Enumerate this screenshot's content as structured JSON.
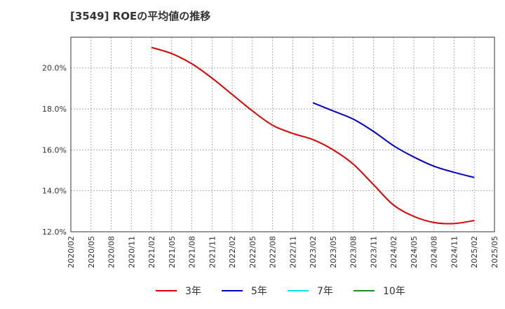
{
  "chart_data": {
    "type": "line",
    "title": "[3549]  ROEの平均値の推移",
    "xlabel": "",
    "ylabel": "",
    "x_ticks": [
      "2020/02",
      "2020/05",
      "2020/08",
      "2020/11",
      "2021/02",
      "2021/05",
      "2021/08",
      "2021/11",
      "2022/02",
      "2022/05",
      "2022/08",
      "2022/11",
      "2023/02",
      "2023/05",
      "2023/08",
      "2023/11",
      "2024/02",
      "2024/05",
      "2024/08",
      "2024/11",
      "2025/02",
      "2025/05"
    ],
    "y_ticks": [
      "12.0%",
      "14.0%",
      "16.0%",
      "18.0%",
      "20.0%"
    ],
    "ylim": [
      12.0,
      21.5
    ],
    "grid": true,
    "legend_position": "bottom",
    "series": [
      {
        "name": "3年",
        "color": "#dd0000",
        "points": [
          [
            "2021/02",
            21.0
          ],
          [
            "2021/05",
            20.7
          ],
          [
            "2021/08",
            20.2
          ],
          [
            "2021/11",
            19.5
          ],
          [
            "2022/02",
            18.7
          ],
          [
            "2022/05",
            17.9
          ],
          [
            "2022/08",
            17.2
          ],
          [
            "2022/11",
            16.8
          ],
          [
            "2023/02",
            16.5
          ],
          [
            "2023/05",
            16.0
          ],
          [
            "2023/08",
            15.3
          ],
          [
            "2023/11",
            14.3
          ],
          [
            "2024/02",
            13.3
          ],
          [
            "2024/05",
            12.75
          ],
          [
            "2024/08",
            12.45
          ],
          [
            "2024/11",
            12.4
          ],
          [
            "2025/02",
            12.55
          ]
        ]
      },
      {
        "name": "5年",
        "color": "#0000cc",
        "points": [
          [
            "2023/02",
            18.3
          ],
          [
            "2023/05",
            17.9
          ],
          [
            "2023/08",
            17.5
          ],
          [
            "2023/11",
            16.9
          ],
          [
            "2024/02",
            16.2
          ],
          [
            "2024/05",
            15.65
          ],
          [
            "2024/08",
            15.2
          ],
          [
            "2024/11",
            14.9
          ],
          [
            "2025/02",
            14.65
          ]
        ]
      },
      {
        "name": "7年",
        "color": "#00e5ee",
        "points": []
      },
      {
        "name": "10年",
        "color": "#228822",
        "points": []
      }
    ]
  }
}
